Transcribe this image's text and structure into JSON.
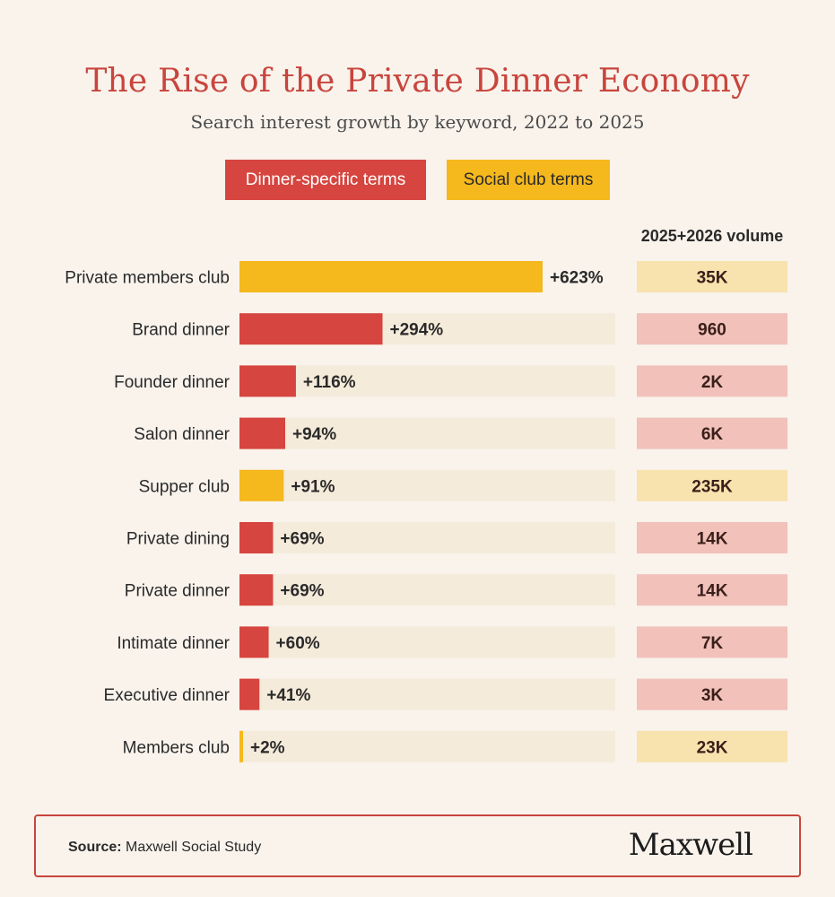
{
  "title": "The Rise of the Private Dinner Economy",
  "subtitle": "Search interest growth by keyword, 2022 to 2025",
  "legend": {
    "dinner": "Dinner-specific terms",
    "social": "Social club terms"
  },
  "volume_header": "2025+2026 volume",
  "colors": {
    "dinner": "#d6453f",
    "social": "#f5b81d",
    "track": "#f5ebdb",
    "dinner_volume_bg": "#f1c1ba",
    "social_volume_bg": "#f8e2ae",
    "title": "#c8453d"
  },
  "footer": {
    "source_label": "Source:",
    "source_text": "Maxwell Social Study",
    "logo": "Maxwell"
  },
  "chart_data": {
    "type": "bar",
    "orientation": "horizontal",
    "title": "The Rise of the Private Dinner Economy",
    "subtitle": "Search interest growth by keyword, 2022 to 2025",
    "xlim": [
      0,
      750
    ],
    "categories": [
      "Private members club",
      "Brand dinner",
      "Founder dinner",
      "Salon dinner",
      "Supper club",
      "Private dining",
      "Private dinner",
      "Intimate dinner",
      "Executive dinner",
      "Members club"
    ],
    "values": [
      623,
      294,
      116,
      94,
      91,
      69,
      69,
      60,
      41,
      2
    ],
    "value_labels": [
      "+623%",
      "+294%",
      "+116%",
      "+94%",
      "+91%",
      "+69%",
      "+69%",
      "+60%",
      "+41%",
      "+2%"
    ],
    "groups": [
      "social",
      "dinner",
      "dinner",
      "dinner",
      "social",
      "dinner",
      "dinner",
      "dinner",
      "dinner",
      "social"
    ],
    "volumes": [
      "35K",
      "960",
      "2K",
      "6K",
      "235K",
      "14K",
      "14K",
      "7K",
      "3K",
      "23K"
    ],
    "legend": [
      "Dinner-specific terms",
      "Social club terms"
    ],
    "legend_position": "top",
    "grid": false
  }
}
